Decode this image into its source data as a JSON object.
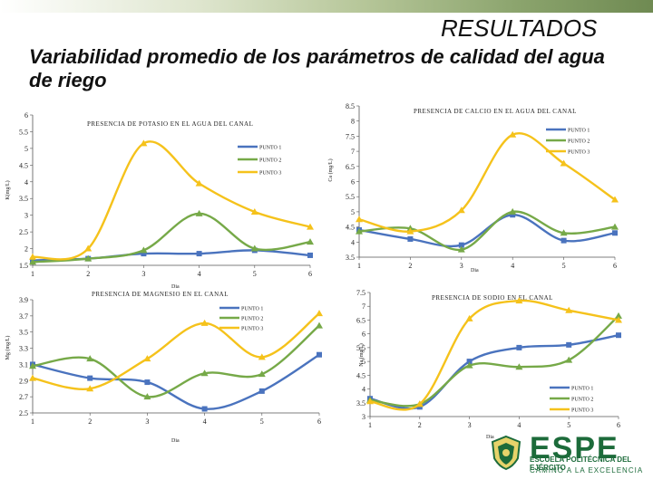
{
  "header": {
    "title": "RESULTADOS"
  },
  "slide": {
    "subtitle": "Variabilidad promedio de los parámetros de calidad del agua de riego"
  },
  "branding": {
    "logo": "ESPE",
    "line1": "ESCUELA POLITÉCNICA DEL EJÉRCITO",
    "line2": "CAMINO A LA EXCELENCIA"
  },
  "colors": {
    "series1": "#4a73be",
    "series2": "#76a948",
    "series3": "#f5c21b"
  },
  "chart_data": [
    {
      "id": "k",
      "type": "line",
      "title": "PRESENCIA DE POTASIO EN EL AGUA DEL CANAL",
      "xlabel": "Dia",
      "ylabel": "K(mg/L)",
      "x": [
        1,
        2,
        3,
        4,
        5,
        6
      ],
      "ylim": [
        1.5,
        6
      ],
      "yticks": [
        "1.5",
        "2",
        "2.5",
        "3",
        "3.5",
        "4",
        "4.5",
        "5",
        "5.5",
        "6"
      ],
      "grid": false,
      "legend": "top-right",
      "series": [
        {
          "name": "PUNTO 1",
          "values": [
            1.65,
            1.7,
            1.85,
            1.85,
            1.95,
            1.8
          ]
        },
        {
          "name": "PUNTO 2",
          "values": [
            1.6,
            1.7,
            1.95,
            3.05,
            2.0,
            2.2
          ]
        },
        {
          "name": "PUNTO 3",
          "values": [
            1.75,
            2.0,
            5.15,
            3.95,
            3.1,
            2.65
          ]
        }
      ]
    },
    {
      "id": "ca",
      "type": "line",
      "title": "PRESENCIA DE CALCIO EN EL AGUA DEL CANAL",
      "xlabel": "Dia",
      "ylabel": "Ca (mg/L)",
      "x": [
        1,
        2,
        3,
        4,
        5,
        6
      ],
      "ylim": [
        3.5,
        8.5
      ],
      "yticks": [
        "3.5",
        "4",
        "4.5",
        "5",
        "5.5",
        "6",
        "6.5",
        "7",
        "7.5",
        "8",
        "8.5"
      ],
      "grid": false,
      "legend": "top-right",
      "series": [
        {
          "name": "PUNTO 1",
          "values": [
            4.4,
            4.1,
            3.9,
            4.9,
            4.05,
            4.3
          ]
        },
        {
          "name": "PUNTO 2",
          "values": [
            4.35,
            4.45,
            3.75,
            5.0,
            4.3,
            4.5
          ]
        },
        {
          "name": "PUNTO 3",
          "values": [
            4.75,
            4.35,
            5.05,
            7.55,
            6.6,
            5.4
          ]
        }
      ]
    },
    {
      "id": "mg",
      "type": "line",
      "title": "PRESENCIA DE MAGNESIO EN EL CANAL",
      "xlabel": "Dia",
      "ylabel": "Mg (mg/L)",
      "x": [
        1,
        2,
        3,
        4,
        5,
        6
      ],
      "ylim": [
        2.5,
        3.9
      ],
      "yticks": [
        "2.5",
        "2.7",
        "2.9",
        "3.1",
        "3.3",
        "3.5",
        "3.7",
        "3.9"
      ],
      "grid": false,
      "legend": "top-right",
      "series": [
        {
          "name": "PUNTO 1",
          "values": [
            3.1,
            2.93,
            2.88,
            2.55,
            2.77,
            3.22
          ]
        },
        {
          "name": "PUNTO 2",
          "values": [
            3.08,
            3.17,
            2.7,
            2.99,
            2.98,
            3.58
          ]
        },
        {
          "name": "PUNTO 3",
          "values": [
            2.93,
            2.8,
            3.17,
            3.61,
            3.19,
            3.73
          ]
        }
      ]
    },
    {
      "id": "na",
      "type": "line",
      "title": "PRESENCIA DE SODIO EN EL CANAL",
      "xlabel": "Dia",
      "ylabel": "Na (mg/L)",
      "x": [
        1,
        2,
        3,
        4,
        5,
        6
      ],
      "ylim": [
        3,
        7.5
      ],
      "yticks": [
        "3",
        "3.5",
        "4",
        "4.5",
        "5",
        "5.5",
        "6",
        "6.5",
        "7",
        "7.5"
      ],
      "grid": false,
      "legend": "bottom-right",
      "series": [
        {
          "name": "PUNTO 1",
          "values": [
            3.65,
            3.35,
            5.0,
            5.5,
            5.6,
            5.95
          ]
        },
        {
          "name": "PUNTO 2",
          "values": [
            3.6,
            3.45,
            4.85,
            4.8,
            5.05,
            6.65
          ]
        },
        {
          "name": "PUNTO 3",
          "values": [
            3.55,
            3.45,
            6.55,
            7.2,
            6.85,
            6.5
          ]
        }
      ]
    }
  ]
}
